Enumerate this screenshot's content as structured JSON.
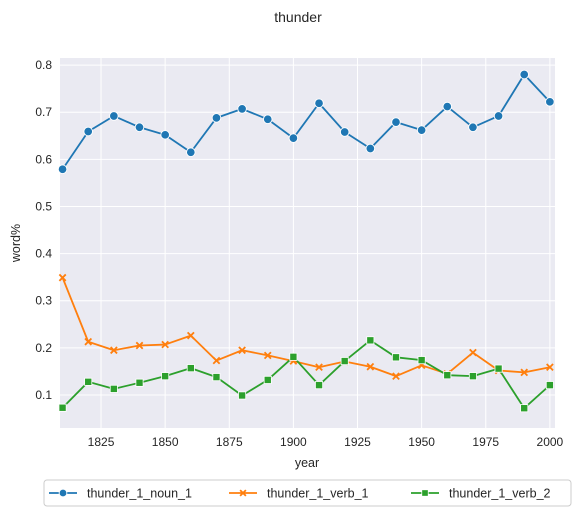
{
  "chart_data": {
    "type": "line",
    "title": "thunder",
    "xlabel": "year",
    "ylabel": "word%",
    "xlim": [
      1809,
      2002
    ],
    "ylim": [
      0.03,
      0.815
    ],
    "xticks": [
      1825,
      1850,
      1875,
      1900,
      1925,
      1950,
      1975,
      2000
    ],
    "yticks": [
      0.1,
      0.2,
      0.3,
      0.4,
      0.5,
      0.6,
      0.7,
      0.8
    ],
    "grid": true,
    "legend_position": "bottom-center",
    "x": [
      1810,
      1820,
      1830,
      1840,
      1850,
      1860,
      1870,
      1880,
      1890,
      1900,
      1910,
      1920,
      1930,
      1940,
      1950,
      1960,
      1970,
      1980,
      1990,
      2000
    ],
    "series": [
      {
        "name": "thunder_1_noun_1",
        "color": "#1f77b4",
        "marker": "circle",
        "values": [
          0.579,
          0.659,
          0.692,
          0.668,
          0.652,
          0.615,
          0.688,
          0.707,
          0.685,
          0.645,
          0.719,
          0.658,
          0.623,
          0.679,
          0.662,
          0.712,
          0.668,
          0.692,
          0.78,
          0.722
        ]
      },
      {
        "name": "thunder_1_verb_1",
        "color": "#ff7f0e",
        "marker": "x",
        "values": [
          0.349,
          0.213,
          0.195,
          0.205,
          0.207,
          0.226,
          0.173,
          0.195,
          0.184,
          0.172,
          0.159,
          0.171,
          0.16,
          0.14,
          0.163,
          0.145,
          0.19,
          0.152,
          0.148,
          0.159
        ]
      },
      {
        "name": "thunder_1_verb_2",
        "color": "#2ca02c",
        "marker": "square",
        "values": [
          0.073,
          0.128,
          0.113,
          0.126,
          0.14,
          0.157,
          0.138,
          0.099,
          0.132,
          0.181,
          0.121,
          0.172,
          0.216,
          0.18,
          0.174,
          0.142,
          0.14,
          0.156,
          0.072,
          0.121
        ]
      }
    ]
  }
}
